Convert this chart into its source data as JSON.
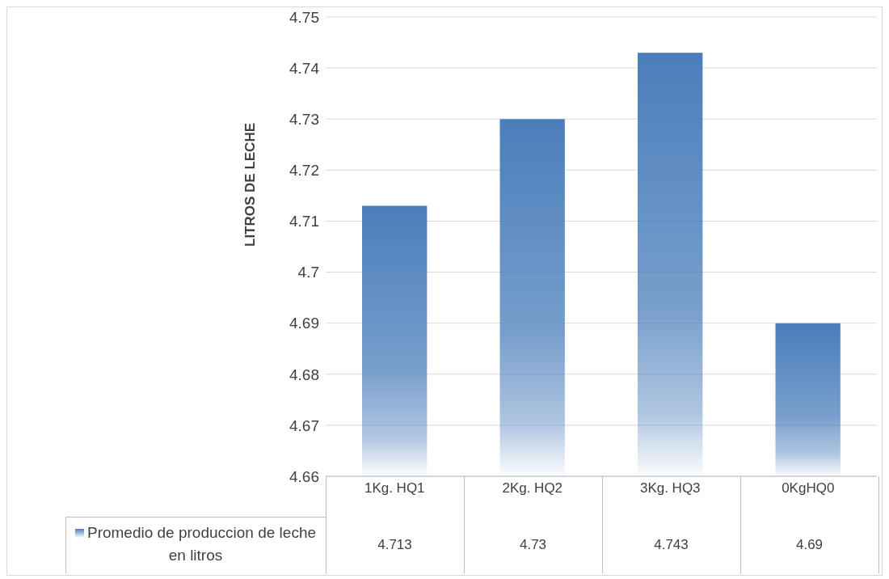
{
  "chart_data": {
    "type": "bar",
    "ylabel": "LITROS DE LECHE",
    "categories": [
      "1Kg. HQ1",
      "2Kg. HQ2",
      "3Kg. HQ3",
      "0KgHQ0"
    ],
    "series": [
      {
        "name": "Promedio de produccion de leche en litros",
        "color": "#4a7ebb",
        "values": [
          4.713,
          4.73,
          4.743,
          4.69
        ]
      }
    ],
    "ylim": [
      4.66,
      4.75
    ],
    "yticks": [
      4.66,
      4.67,
      4.68,
      4.69,
      4.7,
      4.71,
      4.72,
      4.73,
      4.74,
      4.75
    ],
    "grid": "y",
    "legend": "bottom left",
    "data_labels": true
  }
}
